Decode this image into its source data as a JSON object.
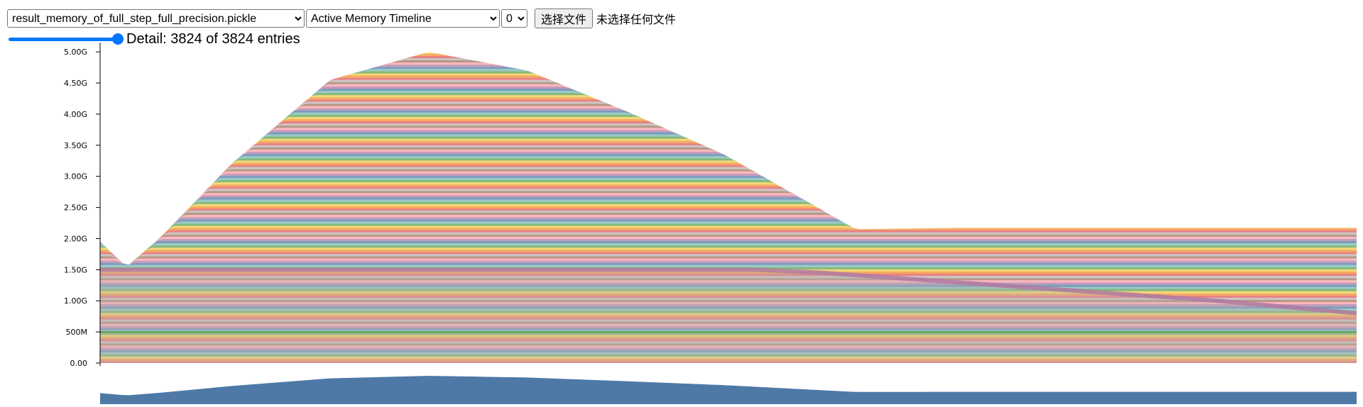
{
  "toolbar": {
    "file_select": {
      "selected": "result_memory_of_full_step_full_precision.pickle"
    },
    "view_select": {
      "selected": "Active Memory Timeline"
    },
    "device_select": {
      "selected": "0"
    },
    "file_button_label": "选择文件",
    "file_status": "未选择任何文件"
  },
  "detail": {
    "slider_fraction": 1.0,
    "label": "Detail: 3824 of 3824 entries"
  },
  "colors": {
    "accent": "#0075ff",
    "minimap_fill": "#4e79a7",
    "stack_palette": [
      "#e15759",
      "#f28e2b",
      "#edc948",
      "#59a14f",
      "#76b7b2",
      "#4e79a7",
      "#b07aa1",
      "#ff9da7",
      "#9c755f",
      "#bab0ac"
    ]
  },
  "chart_data": {
    "type": "area",
    "stacked": true,
    "ylim": [
      0,
      5.15
    ],
    "yunit": "GB",
    "yticks": [
      {
        "value": 0,
        "label": "0.00"
      },
      {
        "value": 0.5,
        "label": "500M"
      },
      {
        "value": 1.0,
        "label": "1.00G"
      },
      {
        "value": 1.5,
        "label": "1.50G"
      },
      {
        "value": 2.0,
        "label": "2.00G"
      },
      {
        "value": 2.5,
        "label": "2.50G"
      },
      {
        "value": 3.0,
        "label": "3.00G"
      },
      {
        "value": 3.5,
        "label": "3.50G"
      },
      {
        "value": 4.0,
        "label": "4.00G"
      },
      {
        "value": 4.5,
        "label": "4.50G"
      },
      {
        "value": 5.0,
        "label": "5.00G"
      }
    ],
    "xlim": [
      0,
      3824
    ],
    "total_memory": {
      "x": [
        0,
        80,
        180,
        400,
        700,
        1000,
        1150,
        1300,
        1600,
        1900,
        2200,
        2300,
        2600,
        2900,
        3300,
        3824
      ],
      "y": [
        1.95,
        1.55,
        2.0,
        3.2,
        4.55,
        5.0,
        4.85,
        4.7,
        4.05,
        3.35,
        2.45,
        2.15,
        2.17,
        2.17,
        2.17,
        2.17
      ]
    },
    "persistent_base": {
      "x": [
        0,
        3824
      ],
      "y": [
        1.5,
        1.5
      ]
    },
    "lower_band_top": {
      "x": [
        0,
        1000,
        2000,
        2200,
        2600,
        3000,
        3400,
        3824
      ],
      "y": [
        1.5,
        1.5,
        1.5,
        1.45,
        1.3,
        1.15,
        1.0,
        0.8
      ]
    }
  }
}
